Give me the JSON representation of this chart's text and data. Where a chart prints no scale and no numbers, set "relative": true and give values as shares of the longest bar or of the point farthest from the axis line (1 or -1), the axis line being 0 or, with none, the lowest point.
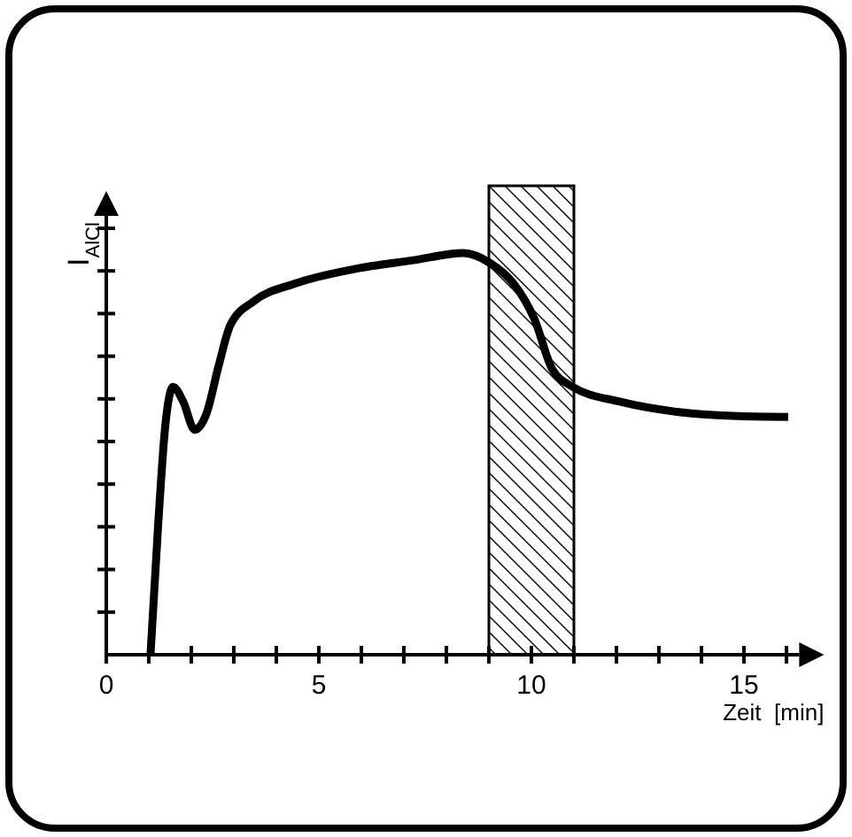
{
  "chart_data": {
    "type": "line",
    "relative": true,
    "xlabel": "Zeit  [min]",
    "ylabel": "I$_{AlCl}$",
    "xlim": [
      0,
      16.3
    ],
    "xticks": [
      0,
      {
        "value": 1,
        "label": null
      },
      {
        "value": 2,
        "label": null
      },
      {
        "value": 3,
        "label": null
      },
      {
        "value": 4,
        "label": null
      },
      5,
      {
        "value": 6,
        "label": null
      },
      {
        "value": 7,
        "label": null
      },
      {
        "value": 8,
        "label": null
      },
      {
        "value": 9,
        "label": null
      },
      10,
      {
        "value": 11,
        "label": null
      },
      {
        "value": 12,
        "label": null
      },
      {
        "value": 13,
        "label": null
      },
      {
        "value": 14,
        "label": null
      },
      15,
      {
        "value": 16,
        "label": null
      }
    ],
    "series": [
      {
        "color": "#000000",
        "x": [
          1.04,
          1.22,
          1.39,
          1.57,
          1.81,
          2.08,
          2.36,
          2.64,
          2.92,
          3.47,
          4.44,
          5.83,
          7.22,
          8.4,
          9.03,
          9.58,
          10.07,
          10.49,
          10.97,
          12.08,
          13.47,
          14.86,
          16.04
        ],
        "values": [
          0,
          0.323,
          0.572,
          0.667,
          0.63,
          0.56,
          0.601,
          0.718,
          0.821,
          0.88,
          0.924,
          0.96,
          0.982,
          1,
          0.975,
          0.924,
          0.836,
          0.711,
          0.667,
          0.63,
          0.604,
          0.594,
          0.592
        ]
      }
    ],
    "bands": [
      {
        "axis": "x",
        "from": 9,
        "to": 11
      }
    ],
    "legend": false
  }
}
